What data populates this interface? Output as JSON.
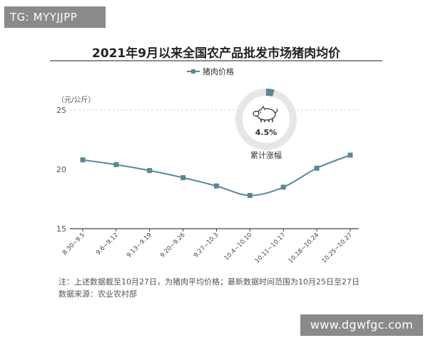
{
  "watermark_tl": "TG: MYYJJPP",
  "watermark_br": "www.dgwfgc.com",
  "note": "注：上述数据截至10月27日，为猪肉平均价格；最新数据时间范围为10月25日至27日",
  "source": "数据来源：农业农村部",
  "badge": {
    "value": "4.5%",
    "label": "累计涨幅",
    "icon": "pig-icon",
    "ring_color": "#e6e6e6",
    "accent_color": "#5d8797"
  },
  "colors": {
    "series": "#5d8797",
    "axis": "#444444",
    "grid": "#d0d0d0",
    "badge_fill": "#ffffff"
  },
  "chart_data": {
    "type": "line",
    "title": "2021年9月以来全国农产品批发市场猪肉均价",
    "ylabel": "（元/公斤）",
    "ylim": [
      15,
      25
    ],
    "yticks": [
      15,
      20,
      25
    ],
    "grid": "dashed at 25",
    "legend_position": "top-center",
    "categories": [
      "8.30~9.5",
      "9.6~9.12",
      "9.13~9.19",
      "9.20~9.26",
      "9.27~10.3",
      "10.4~10.10",
      "10.11~10.17",
      "10.18~10.24",
      "10.25~10.27"
    ],
    "series": [
      {
        "name": "猪肉价格",
        "values": [
          20.8,
          20.4,
          19.9,
          19.3,
          18.6,
          17.8,
          18.5,
          20.1,
          21.2
        ]
      }
    ]
  }
}
